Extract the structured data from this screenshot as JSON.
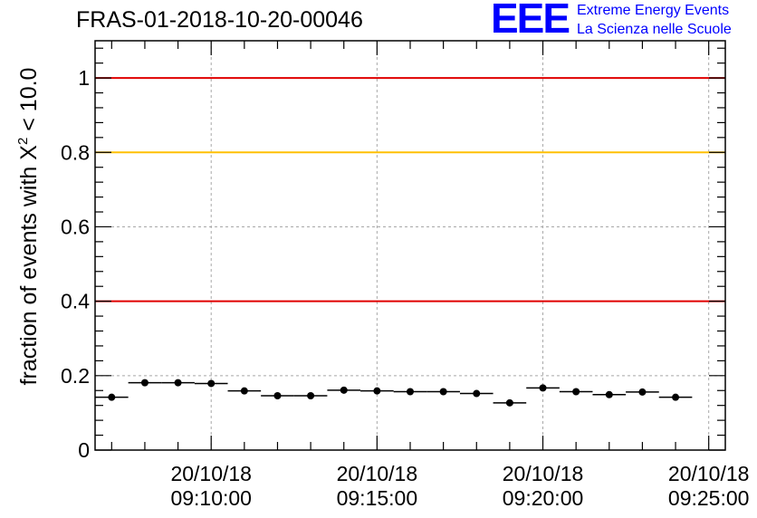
{
  "header": {
    "title": "FRAS-01-2018-10-20-00046"
  },
  "logo": {
    "mark": "EEE",
    "line1": "Extreme Energy Events",
    "line2": "La Scienza nelle Scuole",
    "color": "#0000ff"
  },
  "chart_data": {
    "type": "scatter",
    "title": "FRAS-01-2018-10-20-00046",
    "ylabel_prefix": "fraction of events with X",
    "ylabel_sup": "2",
    "ylabel_suffix": " < 10.0",
    "xlabel": "",
    "ylim": [
      0,
      1.1
    ],
    "xlim": [
      "20/10/18 09:06:30",
      "20/10/18 09:25:30"
    ],
    "x_ticks": [
      {
        "date": "20/10/18",
        "time": "09:10:00"
      },
      {
        "date": "20/10/18",
        "time": "09:15:00"
      },
      {
        "date": "20/10/18",
        "time": "09:20:00"
      },
      {
        "date": "20/10/18",
        "time": "09:25:00"
      }
    ],
    "y_ticks": [
      0,
      0.2,
      0.4,
      0.6,
      0.8,
      1
    ],
    "y_tick_labels": [
      "0",
      "0.2",
      "0.4",
      "0.6",
      "0.8",
      "1"
    ],
    "grid": true,
    "reference_lines": [
      {
        "y": 1.0,
        "color": "#e00000"
      },
      {
        "y": 0.8,
        "color": "#ffc000"
      },
      {
        "y": 0.4,
        "color": "#e00000"
      }
    ],
    "points": [
      {
        "start": "09:06:30",
        "end": "09:07:30",
        "y": 0.142
      },
      {
        "start": "09:07:30",
        "end": "09:08:30",
        "y": 0.181
      },
      {
        "start": "09:08:30",
        "end": "09:09:30",
        "y": 0.181
      },
      {
        "start": "09:09:30",
        "end": "09:10:30",
        "y": 0.179
      },
      {
        "start": "09:10:30",
        "end": "09:11:30",
        "y": 0.159
      },
      {
        "start": "09:11:30",
        "end": "09:12:30",
        "y": 0.146
      },
      {
        "start": "09:12:30",
        "end": "09:13:30",
        "y": 0.146
      },
      {
        "start": "09:13:30",
        "end": "09:14:30",
        "y": 0.161
      },
      {
        "start": "09:14:30",
        "end": "09:15:30",
        "y": 0.159
      },
      {
        "start": "09:15:30",
        "end": "09:16:30",
        "y": 0.157
      },
      {
        "start": "09:16:30",
        "end": "09:17:30",
        "y": 0.157
      },
      {
        "start": "09:17:30",
        "end": "09:18:30",
        "y": 0.152
      },
      {
        "start": "09:18:30",
        "end": "09:19:30",
        "y": 0.127
      },
      {
        "start": "09:19:30",
        "end": "09:20:30",
        "y": 0.167
      },
      {
        "start": "09:20:30",
        "end": "09:21:30",
        "y": 0.157
      },
      {
        "start": "09:21:30",
        "end": "09:22:30",
        "y": 0.149
      },
      {
        "start": "09:22:30",
        "end": "09:23:30",
        "y": 0.156
      },
      {
        "start": "09:23:30",
        "end": "09:24:30",
        "y": 0.142
      }
    ],
    "marker_color": "#000000",
    "grid_color": "#a8a8a8"
  }
}
